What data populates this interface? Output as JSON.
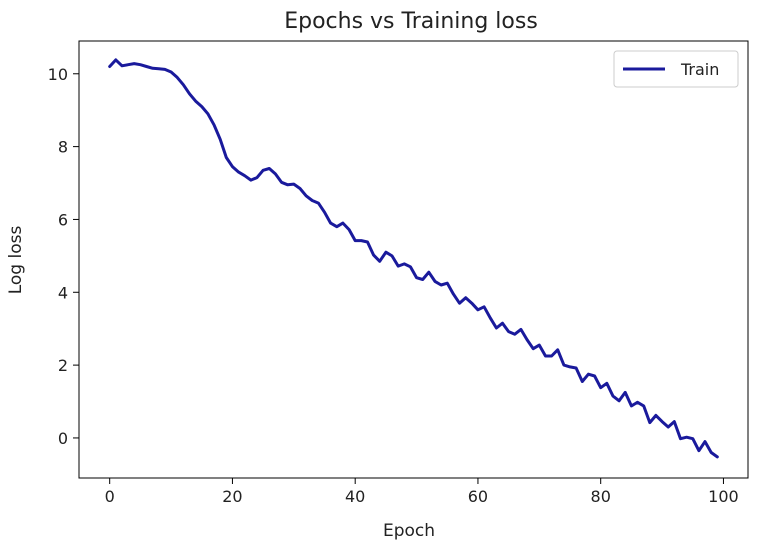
{
  "colors": {
    "series_line": "#1a1a9c",
    "axes": "#000000",
    "background": "#ffffff",
    "legend_border": "#cccccc"
  },
  "chart_data": {
    "type": "line",
    "title": "Epochs vs Training loss",
    "xlabel": "Epoch",
    "ylabel": "Log loss",
    "xlim": [
      -5,
      104
    ],
    "ylim": [
      -1.1,
      10.9
    ],
    "xticks": [
      0,
      20,
      40,
      60,
      80,
      100
    ],
    "yticks": [
      0,
      2,
      4,
      6,
      8,
      10
    ],
    "xtick_labels": [
      "0",
      "20",
      "40",
      "60",
      "80",
      "100"
    ],
    "ytick_labels": [
      "0",
      "2",
      "4",
      "6",
      "8",
      "10"
    ],
    "grid": false,
    "legend": {
      "position": "top-right",
      "entries": [
        "Train"
      ]
    },
    "series": [
      {
        "name": "Train",
        "color": "#1a1a9c",
        "x": [
          0,
          1,
          2,
          3,
          4,
          5,
          6,
          7,
          8,
          9,
          10,
          11,
          12,
          13,
          14,
          15,
          16,
          17,
          18,
          19,
          20,
          21,
          22,
          23,
          24,
          25,
          26,
          27,
          28,
          29,
          30,
          31,
          32,
          33,
          34,
          35,
          36,
          37,
          38,
          39,
          40,
          41,
          42,
          43,
          44,
          45,
          46,
          47,
          48,
          49,
          50,
          51,
          52,
          53,
          54,
          55,
          56,
          57,
          58,
          59,
          60,
          61,
          62,
          63,
          64,
          65,
          66,
          67,
          68,
          69,
          70,
          71,
          72,
          73,
          74,
          75,
          76,
          77,
          78,
          79,
          80,
          81,
          82,
          83,
          84,
          85,
          86,
          87,
          88,
          89,
          90,
          91,
          92,
          93,
          94,
          95,
          96,
          97,
          98,
          99
        ],
        "y": [
          10.2,
          10.38,
          10.22,
          10.25,
          10.28,
          10.25,
          10.2,
          10.15,
          10.14,
          10.12,
          10.05,
          9.9,
          9.7,
          9.45,
          9.25,
          9.1,
          8.9,
          8.6,
          8.2,
          7.7,
          7.45,
          7.3,
          7.2,
          7.08,
          7.15,
          7.35,
          7.4,
          7.25,
          7.02,
          6.95,
          6.97,
          6.85,
          6.65,
          6.52,
          6.45,
          6.2,
          5.9,
          5.8,
          5.9,
          5.72,
          5.42,
          5.42,
          5.38,
          5.02,
          4.85,
          5.1,
          5.0,
          4.72,
          4.78,
          4.7,
          4.4,
          4.35,
          4.55,
          4.3,
          4.2,
          4.25,
          3.95,
          3.7,
          3.85,
          3.7,
          3.52,
          3.6,
          3.3,
          3.02,
          3.15,
          2.92,
          2.85,
          2.98,
          2.7,
          2.45,
          2.55,
          2.25,
          2.25,
          2.42,
          2.0,
          1.95,
          1.92,
          1.55,
          1.75,
          1.7,
          1.38,
          1.5,
          1.15,
          1.02,
          1.25,
          0.88,
          0.98,
          0.88,
          0.42,
          0.62,
          0.45,
          0.3,
          0.45,
          -0.02,
          0.02,
          -0.02,
          -0.35,
          -0.1,
          -0.4,
          -0.52
        ]
      }
    ]
  }
}
